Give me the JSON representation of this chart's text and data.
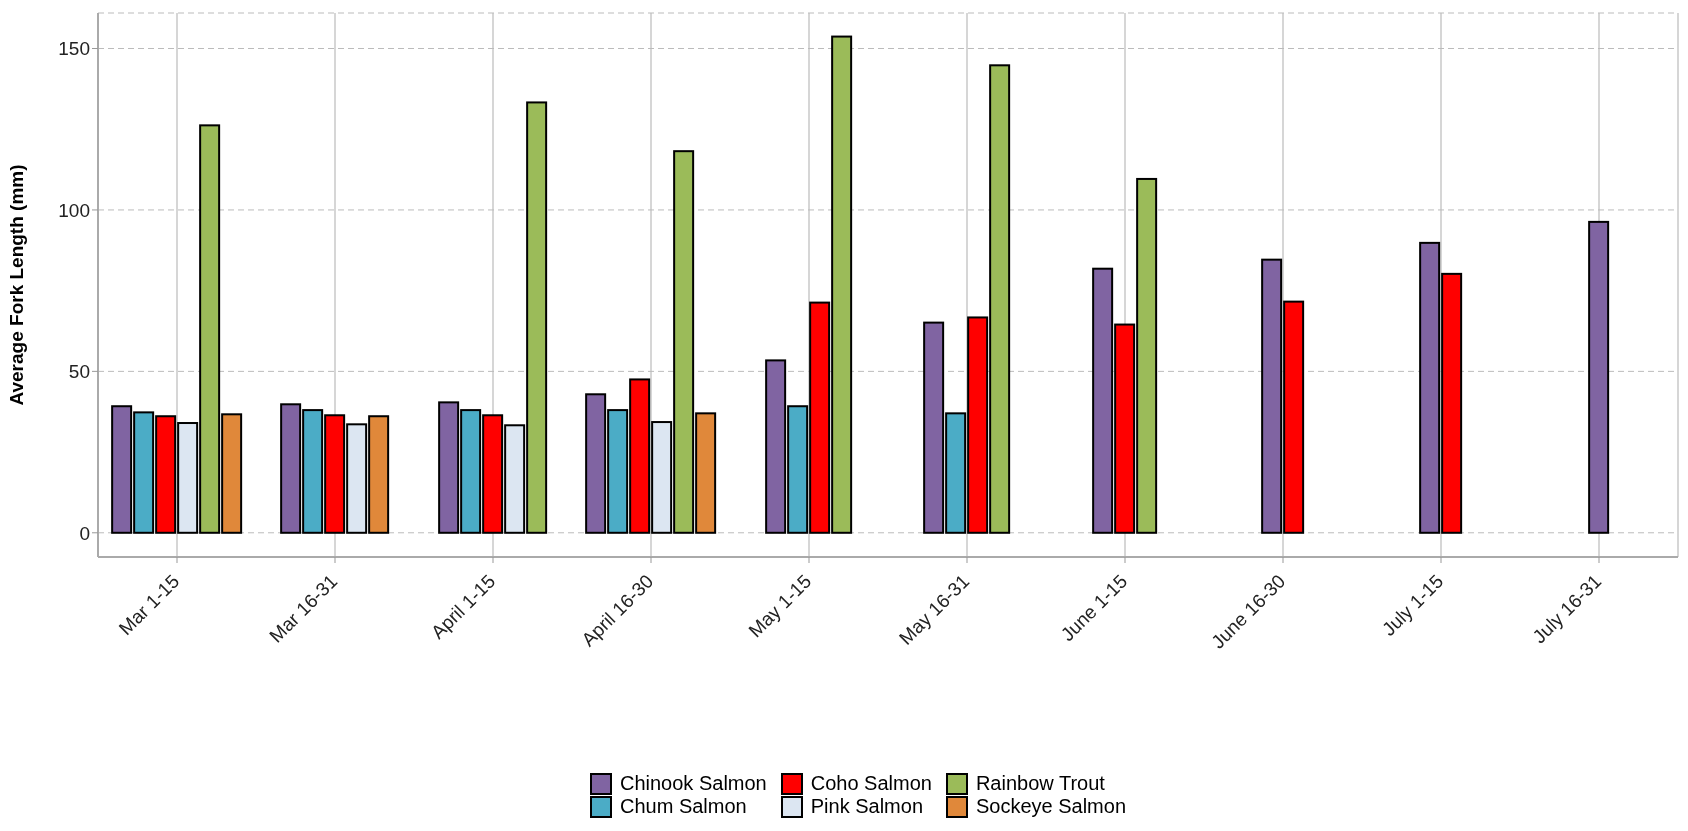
{
  "chart_data": {
    "type": "bar",
    "ylabel": "Average Fork Length (mm)",
    "categories": [
      "Mar 1-15",
      "Mar 16-31",
      "April 1-15",
      "April 16-30",
      "May 1-15",
      "May 16-31",
      "June 1-15",
      "June 16-30",
      "July 1-15",
      "July 16-31"
    ],
    "series": [
      {
        "name": "Chinook Salmon",
        "color": "#8064a2",
        "values": [
          39.2,
          39.8,
          40.4,
          42.9,
          53.4,
          65.1,
          81.8,
          84.6,
          89.8,
          96.3
        ]
      },
      {
        "name": "Chum Salmon",
        "color": "#4bacc6",
        "values": [
          37.3,
          38,
          38,
          38,
          39.2,
          37,
          null,
          null,
          null,
          null
        ]
      },
      {
        "name": "Coho Salmon",
        "color": "#ff0000",
        "values": [
          36.1,
          36.4,
          36.4,
          47.5,
          71.3,
          66.7,
          64.5,
          71.6,
          80.2,
          null
        ]
      },
      {
        "name": "Pink Salmon",
        "color": "#dce6f2",
        "values": [
          34,
          33.6,
          33.3,
          34.3,
          null,
          null,
          null,
          null,
          null,
          null
        ]
      },
      {
        "name": "Rainbow Trout",
        "color": "#9bbb59",
        "values": [
          126.2,
          null,
          133.3,
          118.2,
          153.7,
          144.8,
          109.6,
          null,
          null,
          null
        ]
      },
      {
        "name": "Sockeye Salmon",
        "color": "#e0883a",
        "values": [
          36.7,
          36.1,
          null,
          37,
          null,
          null,
          null,
          null,
          null,
          null
        ]
      }
    ],
    "ylim": [
      -7.5,
      161
    ],
    "yticks": [
      0,
      50,
      100,
      150
    ],
    "grid": true,
    "legend": "bottom"
  }
}
